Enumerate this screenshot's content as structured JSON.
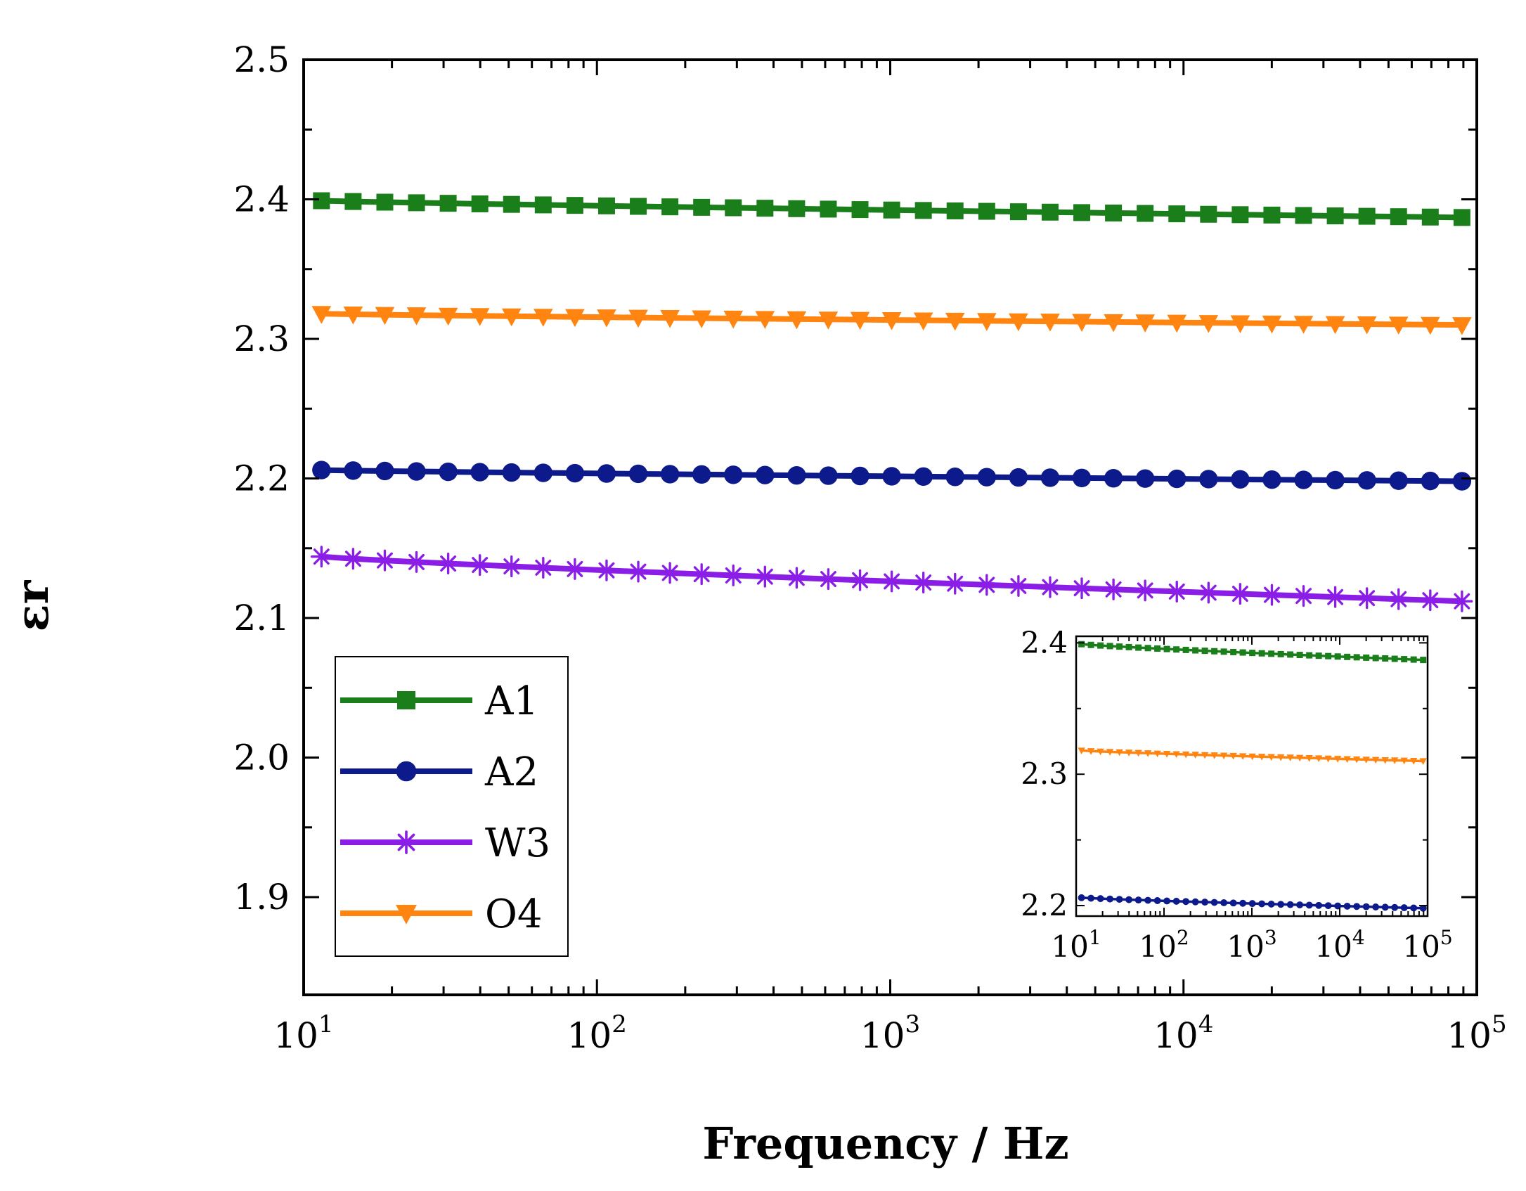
{
  "chart_data": [
    {
      "type": "line",
      "id": "main",
      "title": "",
      "xlabel": "Frequency / Hz",
      "ylabel": "εr",
      "xscale": "log",
      "xlim": [
        10,
        100000
      ],
      "ylim": [
        1.83,
        2.5
      ],
      "xticks": [
        {
          "value": 10,
          "base": "10",
          "exp": "1"
        },
        {
          "value": 100,
          "base": "10",
          "exp": "2"
        },
        {
          "value": 1000,
          "base": "10",
          "exp": "3"
        },
        {
          "value": 10000,
          "base": "10",
          "exp": "4"
        },
        {
          "value": 100000,
          "base": "10",
          "exp": "5"
        }
      ],
      "yticks": [
        {
          "value": 1.9,
          "label": "1.9"
        },
        {
          "value": 2.0,
          "label": "2.0"
        },
        {
          "value": 2.1,
          "label": "2.1"
        },
        {
          "value": 2.2,
          "label": "2.2"
        },
        {
          "value": 2.3,
          "label": "2.3"
        },
        {
          "value": 2.4,
          "label": "2.4"
        },
        {
          "value": 2.5,
          "label": "2.5"
        }
      ],
      "legend_position": "bottom-left",
      "series": [
        {
          "name": "A1",
          "color": "#1a7f1a",
          "marker": "square",
          "start": 2.399,
          "end": 2.387
        },
        {
          "name": "A2",
          "color": "#0d1a8c",
          "marker": "circle",
          "start": 2.206,
          "end": 2.198
        },
        {
          "name": "W3",
          "color": "#8b1ee6",
          "marker": "star",
          "start": 2.144,
          "end": 2.112
        },
        {
          "name": "O4",
          "color": "#ff8410",
          "marker": "triangle-down",
          "start": 2.318,
          "end": 2.31
        }
      ],
      "points_per_series": 37,
      "x_first": 11.5,
      "x_last": 89000
    },
    {
      "type": "line",
      "id": "inset",
      "title": "",
      "xscale": "log",
      "xlim": [
        10,
        100000
      ],
      "ylim": [
        2.192,
        2.405
      ],
      "xticks": [
        {
          "value": 10,
          "base": "10",
          "exp": "1"
        },
        {
          "value": 100,
          "base": "10",
          "exp": "2"
        },
        {
          "value": 1000,
          "base": "10",
          "exp": "3"
        },
        {
          "value": 10000,
          "base": "10",
          "exp": "4"
        },
        {
          "value": 100000,
          "base": "10",
          "exp": "5"
        }
      ],
      "yticks": [
        {
          "value": 2.2,
          "label": "2.2"
        },
        {
          "value": 2.3,
          "label": "2.3"
        },
        {
          "value": 2.4,
          "label": "2.4"
        }
      ],
      "series": [
        {
          "name": "A1",
          "color": "#1a7f1a",
          "marker": "square",
          "start": 2.399,
          "end": 2.387
        },
        {
          "name": "O4",
          "color": "#ff8410",
          "marker": "triangle-down",
          "start": 2.318,
          "end": 2.31
        },
        {
          "name": "A2",
          "color": "#0d1a8c",
          "marker": "circle",
          "start": 2.206,
          "end": 2.198
        }
      ],
      "points_per_series": 37,
      "x_first": 11.5,
      "x_last": 89000
    }
  ]
}
